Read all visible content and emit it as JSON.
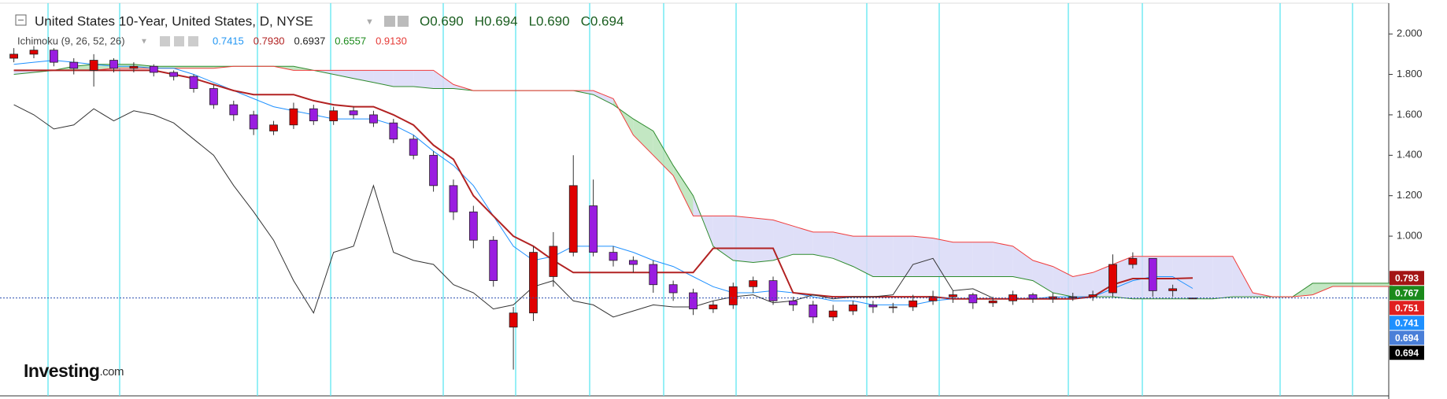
{
  "header": {
    "title": "United States 10-Year, United States, D, NYSE",
    "ohlc": [
      "O0.690",
      "H0.694",
      "L0.690",
      "C0.694"
    ],
    "indicator": "Ichimoku (9, 26, 52, 26)",
    "indicator_values": [
      {
        "text": "0.7415",
        "color": "#2196f3"
      },
      {
        "text": "0.7930",
        "color": "#b22222"
      },
      {
        "text": "0.6937",
        "color": "#222222"
      },
      {
        "text": "0.6557",
        "color": "#1b8a1b"
      },
      {
        "text": "0.9130",
        "color": "#e53935"
      }
    ]
  },
  "logo": {
    "main": "Investing",
    "suffix": ".com"
  },
  "chart_data": {
    "type": "candlestick",
    "open": [
      1.88,
      1.9,
      1.92,
      1.86,
      1.82,
      1.87,
      1.83,
      1.84,
      1.81,
      1.79,
      1.73,
      1.65,
      1.6,
      1.52,
      1.55,
      1.63,
      1.57,
      1.62,
      1.6,
      1.56,
      1.48,
      1.4,
      1.25,
      1.12,
      0.98,
      0.55,
      0.62,
      0.8,
      0.92,
      1.15,
      0.92,
      0.88,
      0.86,
      0.76,
      0.72,
      0.64,
      0.66,
      0.75,
      0.78,
      0.68,
      0.66,
      0.6,
      0.63,
      0.66,
      0.65,
      0.65,
      0.68,
      0.7,
      0.71,
      0.67,
      0.68,
      0.71,
      0.69,
      0.7,
      0.7,
      0.72,
      0.86,
      0.89,
      0.73,
      0.69
    ],
    "high": [
      1.93,
      1.94,
      1.93,
      1.88,
      1.9,
      1.88,
      1.86,
      1.85,
      1.82,
      1.8,
      1.75,
      1.67,
      1.62,
      1.57,
      1.66,
      1.65,
      1.64,
      1.64,
      1.62,
      1.58,
      1.5,
      1.42,
      1.28,
      1.15,
      1.0,
      0.65,
      0.95,
      1.02,
      1.4,
      1.28,
      0.95,
      0.9,
      0.88,
      0.78,
      0.74,
      0.68,
      0.77,
      0.8,
      0.8,
      0.7,
      0.68,
      0.66,
      0.68,
      0.68,
      0.67,
      0.71,
      0.73,
      0.73,
      0.72,
      0.7,
      0.73,
      0.72,
      0.72,
      0.72,
      0.73,
      0.91,
      0.92,
      0.88,
      0.76,
      0.694
    ],
    "low": [
      1.86,
      1.88,
      1.84,
      1.8,
      1.74,
      1.81,
      1.81,
      1.79,
      1.77,
      1.71,
      1.63,
      1.57,
      1.5,
      1.5,
      1.53,
      1.55,
      1.55,
      1.58,
      1.54,
      1.46,
      1.38,
      1.22,
      1.08,
      0.94,
      0.75,
      0.34,
      0.58,
      0.75,
      0.9,
      0.9,
      0.85,
      0.82,
      0.72,
      0.68,
      0.61,
      0.62,
      0.64,
      0.72,
      0.66,
      0.63,
      0.57,
      0.58,
      0.61,
      0.62,
      0.62,
      0.63,
      0.66,
      0.67,
      0.64,
      0.65,
      0.66,
      0.67,
      0.67,
      0.68,
      0.68,
      0.7,
      0.84,
      0.7,
      0.7,
      0.69
    ],
    "close": [
      1.9,
      1.92,
      1.86,
      1.83,
      1.87,
      1.83,
      1.84,
      1.81,
      1.79,
      1.73,
      1.65,
      1.6,
      1.53,
      1.55,
      1.63,
      1.57,
      1.62,
      1.6,
      1.56,
      1.48,
      1.4,
      1.25,
      1.12,
      0.98,
      0.78,
      0.62,
      0.92,
      0.95,
      1.25,
      0.92,
      0.88,
      0.86,
      0.76,
      0.72,
      0.64,
      0.66,
      0.75,
      0.78,
      0.68,
      0.66,
      0.6,
      0.63,
      0.66,
      0.65,
      0.65,
      0.68,
      0.7,
      0.71,
      0.67,
      0.68,
      0.71,
      0.69,
      0.7,
      0.7,
      0.71,
      0.86,
      0.89,
      0.73,
      0.74,
      0.694
    ],
    "candle_colors": {
      "up": "#e00000",
      "down": "#9a1de0"
    },
    "series": [
      {
        "color": "#1e90ff",
        "width": 1,
        "values": [
          1.85,
          1.86,
          1.87,
          1.86,
          1.85,
          1.84,
          1.84,
          1.83,
          1.83,
          1.8,
          1.76,
          1.72,
          1.68,
          1.64,
          1.62,
          1.6,
          1.58,
          1.58,
          1.58,
          1.55,
          1.5,
          1.42,
          1.35,
          1.25,
          1.1,
          0.95,
          0.88,
          0.9,
          0.95,
          0.95,
          0.95,
          0.92,
          0.88,
          0.85,
          0.8,
          0.75,
          0.72,
          0.72,
          0.73,
          0.72,
          0.7,
          0.68,
          0.68,
          0.66,
          0.66,
          0.66,
          0.68,
          0.69,
          0.69,
          0.69,
          0.69,
          0.69,
          0.7,
          0.7,
          0.7,
          0.74,
          0.78,
          0.8,
          0.8,
          0.7415,
          null,
          null,
          null,
          null,
          null,
          null,
          null,
          null,
          null,
          null
        ]
      },
      {
        "color": "#b22222",
        "width": 2,
        "values": [
          1.82,
          1.82,
          1.82,
          1.82,
          1.82,
          1.82,
          1.82,
          1.82,
          1.8,
          1.78,
          1.75,
          1.72,
          1.7,
          1.7,
          1.7,
          1.67,
          1.65,
          1.64,
          1.64,
          1.6,
          1.55,
          1.45,
          1.38,
          1.2,
          1.1,
          1.0,
          0.95,
          0.88,
          0.82,
          0.82,
          0.82,
          0.82,
          0.82,
          0.82,
          0.82,
          0.94,
          0.94,
          0.94,
          0.94,
          0.72,
          0.71,
          0.7,
          0.7,
          0.7,
          0.7,
          0.7,
          0.7,
          0.69,
          0.69,
          0.69,
          0.69,
          0.69,
          0.69,
          0.69,
          0.7,
          0.76,
          0.79,
          0.79,
          0.79,
          0.793,
          null,
          null,
          null,
          null,
          null,
          null,
          null,
          null,
          null,
          null
        ]
      },
      {
        "color": "#333333",
        "width": 1,
        "values": [
          1.65,
          1.6,
          1.53,
          1.55,
          1.63,
          1.57,
          1.62,
          1.6,
          1.56,
          1.48,
          1.4,
          1.25,
          1.12,
          0.98,
          0.78,
          0.62,
          0.92,
          0.95,
          1.25,
          0.92,
          0.88,
          0.86,
          0.76,
          0.72,
          0.64,
          0.66,
          0.75,
          0.78,
          0.68,
          0.66,
          0.6,
          0.63,
          0.66,
          0.65,
          0.65,
          0.68,
          0.7,
          0.71,
          0.67,
          0.68,
          0.71,
          0.69,
          0.7,
          0.7,
          0.71,
          0.86,
          0.89,
          0.73,
          0.74,
          0.694,
          null,
          null,
          null,
          null,
          null,
          null,
          null,
          null,
          null,
          null,
          null,
          null,
          null,
          null,
          null,
          null,
          null,
          null,
          null,
          null
        ]
      }
    ],
    "cloud": {
      "span_a": {
        "color": "#2e8b2e",
        "values": [
          1.8,
          1.81,
          1.82,
          1.84,
          1.85,
          1.85,
          1.85,
          1.84,
          1.84,
          1.84,
          1.84,
          1.84,
          1.84,
          1.84,
          1.84,
          1.82,
          1.8,
          1.78,
          1.76,
          1.74,
          1.74,
          1.73,
          1.73,
          1.72,
          1.72,
          1.72,
          1.72,
          1.72,
          1.72,
          1.7,
          1.65,
          1.58,
          1.52,
          1.35,
          1.2,
          0.95,
          0.88,
          0.87,
          0.88,
          0.91,
          0.91,
          0.89,
          0.85,
          0.8,
          0.8,
          0.8,
          0.8,
          0.8,
          0.8,
          0.8,
          0.8,
          0.78,
          0.72,
          0.7,
          0.7,
          0.7,
          0.69,
          0.69,
          0.69,
          0.69,
          0.69,
          0.7,
          0.7,
          0.7,
          0.7,
          0.767,
          0.767,
          0.767,
          0.767,
          0.767
        ]
      },
      "span_b": {
        "color": "#f03c3c",
        "values": [
          1.82,
          1.82,
          1.82,
          1.82,
          1.82,
          1.83,
          1.83,
          1.83,
          1.83,
          1.83,
          1.83,
          1.84,
          1.84,
          1.84,
          1.82,
          1.82,
          1.82,
          1.82,
          1.82,
          1.82,
          1.82,
          1.82,
          1.75,
          1.72,
          1.72,
          1.72,
          1.72,
          1.72,
          1.72,
          1.72,
          1.68,
          1.5,
          1.4,
          1.3,
          1.1,
          1.1,
          1.1,
          1.09,
          1.08,
          1.05,
          1.02,
          1.02,
          1.0,
          1.0,
          1.0,
          1.0,
          0.99,
          0.97,
          0.97,
          0.97,
          0.95,
          0.88,
          0.85,
          0.8,
          0.82,
          0.86,
          0.9,
          0.9,
          0.9,
          0.9,
          0.9,
          0.9,
          0.72,
          0.7,
          0.7,
          0.71,
          0.751,
          0.751,
          0.751,
          0.751
        ]
      },
      "fill_up": "#b9e3b9",
      "fill_down": "#d9d9f7"
    },
    "ylim": [
      0.214,
      2.168
    ],
    "yticks": [
      {
        "value": 1.0,
        "label": "1.000"
      },
      {
        "value": 1.2,
        "label": "1.200"
      },
      {
        "value": 1.4,
        "label": "1.400"
      },
      {
        "value": 1.6,
        "label": "1.600"
      },
      {
        "value": 1.8,
        "label": "1.800"
      },
      {
        "value": 2.0,
        "label": "2.000"
      }
    ],
    "price_tags": [
      {
        "value": 0.793,
        "label": "0.793",
        "color": "#a31515"
      },
      {
        "value": 0.767,
        "label": "0.767",
        "color": "#1b8a1b"
      },
      {
        "value": 0.751,
        "label": "0.751",
        "color": "#e02020"
      },
      {
        "value": 0.741,
        "label": "0.741",
        "color": "#1e90ff"
      },
      {
        "value": 0.694,
        "label": "0.694",
        "color": "#4a7fd8"
      },
      {
        "value": 0.694,
        "label": "0.694",
        "color": "#000000"
      }
    ]
  }
}
